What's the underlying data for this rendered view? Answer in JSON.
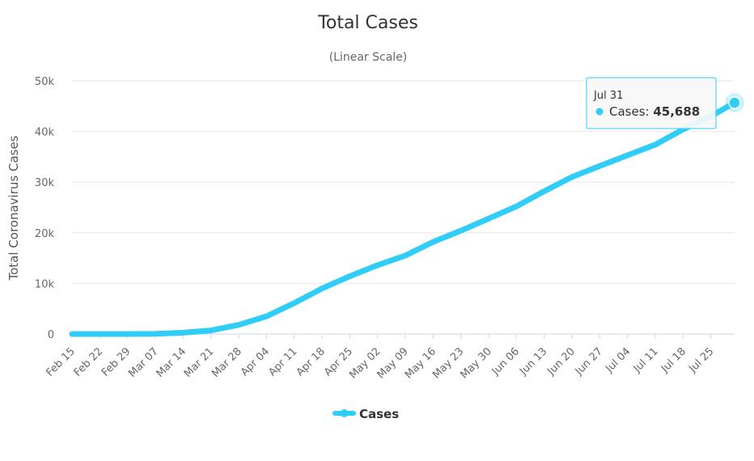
{
  "chart_data": {
    "type": "line",
    "title": "Total Cases",
    "subtitle": "(Linear Scale)",
    "ylabel": "Total Coronavirus Cases",
    "xlabel": "",
    "ylim": [
      0,
      50000
    ],
    "y_ticks": [
      0,
      10000,
      20000,
      30000,
      40000,
      50000
    ],
    "y_tick_labels": [
      "0",
      "10k",
      "20k",
      "30k",
      "40k",
      "50k"
    ],
    "x_tick_labels": [
      "Feb 15",
      "Feb 22",
      "Feb 29",
      "Mar 07",
      "Mar 14",
      "Mar 21",
      "Mar 28",
      "Apr 04",
      "Apr 11",
      "Apr 18",
      "Apr 25",
      "May 02",
      "May 09",
      "May 16",
      "May 23",
      "May 30",
      "Jun 06",
      "Jun 13",
      "Jun 20",
      "Jun 27",
      "Jul 04",
      "Jul 11",
      "Jul 18",
      "Jul 25"
    ],
    "x_ticks": [
      "2020-02-15",
      "2020-02-22",
      "2020-02-29",
      "2020-03-07",
      "2020-03-14",
      "2020-03-21",
      "2020-03-28",
      "2020-04-04",
      "2020-04-11",
      "2020-04-18",
      "2020-04-25",
      "2020-05-02",
      "2020-05-09",
      "2020-05-16",
      "2020-05-23",
      "2020-05-30",
      "2020-06-06",
      "2020-06-13",
      "2020-06-20",
      "2020-06-27",
      "2020-07-04",
      "2020-07-11",
      "2020-07-18",
      "2020-07-25"
    ],
    "x_range": [
      "2020-02-15",
      "2020-07-31"
    ],
    "grid": true,
    "legend_position": "bottom-center",
    "color": "#2fcdf7",
    "series": [
      {
        "name": "Cases",
        "points": [
          [
            "2020-02-15",
            0
          ],
          [
            "2020-02-22",
            0
          ],
          [
            "2020-02-29",
            0
          ],
          [
            "2020-03-07",
            50
          ],
          [
            "2020-03-14",
            250
          ],
          [
            "2020-03-21",
            700
          ],
          [
            "2020-03-28",
            1800
          ],
          [
            "2020-04-04",
            3500
          ],
          [
            "2020-04-11",
            6100
          ],
          [
            "2020-04-18",
            9000
          ],
          [
            "2020-04-25",
            11400
          ],
          [
            "2020-05-02",
            13600
          ],
          [
            "2020-05-09",
            15500
          ],
          [
            "2020-05-16",
            18200
          ],
          [
            "2020-05-23",
            20400
          ],
          [
            "2020-05-30",
            22800
          ],
          [
            "2020-06-06",
            25200
          ],
          [
            "2020-06-13",
            28200
          ],
          [
            "2020-06-20",
            31000
          ],
          [
            "2020-06-27",
            33200
          ],
          [
            "2020-07-04",
            35300
          ],
          [
            "2020-07-11",
            37400
          ],
          [
            "2020-07-18",
            40400
          ],
          [
            "2020-07-25",
            43000
          ],
          [
            "2020-07-31",
            45688
          ]
        ]
      }
    ],
    "tooltip": {
      "date": "Jul 31",
      "series_name": "Cases",
      "value_label": "45,688"
    }
  }
}
